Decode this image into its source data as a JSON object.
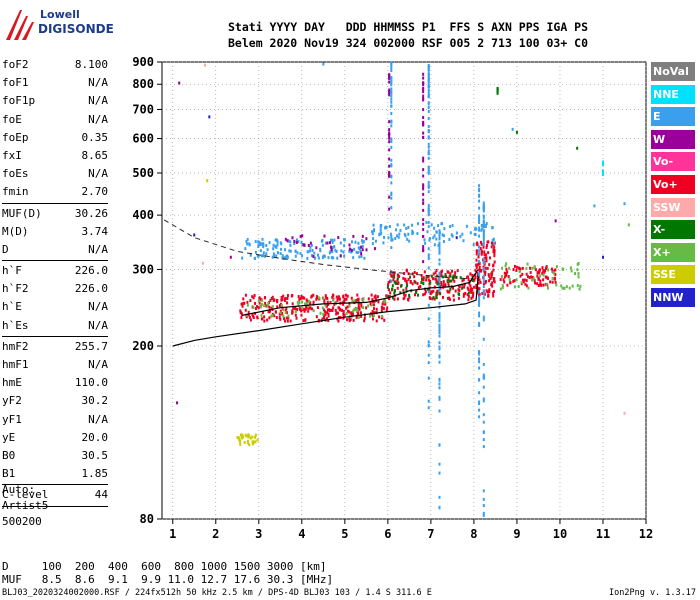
{
  "logo": {
    "line1": "Lowell",
    "line2": "DIGISONDE"
  },
  "header": {
    "line1": "Stati YYYY DAY   DDD HHMMSS P1  FFS S AXN PPS IGA PS",
    "line2": "Belem 2020 Nov19 324 002000 RSF 005 2 713 100 03+ C0"
  },
  "params": [
    {
      "k": "foF2",
      "v": "8.100"
    },
    {
      "k": "foF1",
      "v": "N/A"
    },
    {
      "k": "foF1p",
      "v": "N/A"
    },
    {
      "k": "foE",
      "v": "N/A"
    },
    {
      "k": "foEp",
      "v": "0.35"
    },
    {
      "k": "fxI",
      "v": "8.65"
    },
    {
      "k": "foEs",
      "v": "N/A"
    },
    {
      "k": "fmin",
      "v": "2.70"
    },
    {
      "sep": true
    },
    {
      "k": "MUF(D)",
      "v": "30.26"
    },
    {
      "k": "M(D)",
      "v": "3.74"
    },
    {
      "k": "D",
      "v": "N/A"
    },
    {
      "sep": true
    },
    {
      "k": "h`F",
      "v": "226.0"
    },
    {
      "k": "h`F2",
      "v": "226.0"
    },
    {
      "k": "h`E",
      "v": "N/A"
    },
    {
      "k": "h`Es",
      "v": "N/A"
    },
    {
      "sep": true
    },
    {
      "k": "hmF2",
      "v": "255.7"
    },
    {
      "k": "hmF1",
      "v": "N/A"
    },
    {
      "k": "hmE",
      "v": "110.0"
    },
    {
      "k": "yF2",
      "v": "30.2"
    },
    {
      "k": "yF1",
      "v": "N/A"
    },
    {
      "k": "yE",
      "v": "20.0"
    },
    {
      "k": "B0",
      "v": "30.5"
    },
    {
      "k": "B1",
      "v": "1.85"
    },
    {
      "sep": true
    },
    {
      "k": "C-level",
      "v": "44"
    },
    {
      "sep": true
    }
  ],
  "auto": [
    "Auto:",
    "Artist5",
    "500200"
  ],
  "legend": [
    {
      "label": "NoVal",
      "color": "#7f7f7f"
    },
    {
      "label": "NNE",
      "color": "#00e0ff"
    },
    {
      "label": "E",
      "color": "#3aa0ee"
    },
    {
      "label": "W",
      "color": "#9a0099"
    },
    {
      "label": "Vo-",
      "color": "#ff3399"
    },
    {
      "label": "Vo+",
      "color": "#ee0022"
    },
    {
      "label": "SSW",
      "color": "#ffaaaa"
    },
    {
      "label": "X-",
      "color": "#007700"
    },
    {
      "label": "X+",
      "color": "#66bb44"
    },
    {
      "label": "SSE",
      "color": "#cccc00"
    },
    {
      "label": "NNW",
      "color": "#2222cc"
    }
  ],
  "muf_table": {
    "d_row": "D     100  200  400  600  800 1000 1500 3000 [km]",
    "muf_row": "MUF   8.5  8.6  9.1  9.9 11.0 12.7 17.6 30.3 [MHz]"
  },
  "footer": "BLJ03_2020324002000.RSF / 224fx512h 50 kHz 2.5 km / DPS-4D BLJ03 103 / 1.4 S 311.6 E",
  "version": "Ion2Png v. 1.3.17",
  "chart_data": {
    "type": "scatter",
    "title": "",
    "xlabel": "",
    "ylabel": "",
    "xlim": [
      0.75,
      12
    ],
    "ylim": [
      80,
      900
    ],
    "x_ticks": [
      1,
      2,
      3,
      4,
      5,
      6,
      7,
      8,
      9,
      10,
      11,
      12
    ],
    "y_ticks": [
      80,
      200,
      300,
      400,
      500,
      600,
      700,
      800,
      900
    ],
    "profile_curve": {
      "name": "",
      "x": [
        1.0,
        1.5,
        2.0,
        3.0,
        4.0,
        5.0,
        6.0,
        7.0,
        7.8,
        8.05,
        8.1
      ],
      "y": [
        200,
        206,
        210,
        217,
        225,
        233,
        240,
        245,
        250,
        255,
        290
      ]
    },
    "dashed_curve": {
      "name": "",
      "x": [
        0.8,
        1.5,
        2.5,
        3.5,
        4.5,
        5.5,
        6.5,
        7.5,
        8.05
      ],
      "y": [
        390,
        355,
        330,
        318,
        308,
        300,
        293,
        287,
        285
      ]
    },
    "trace_curve": {
      "name": "",
      "x": [
        2.6,
        3.5,
        4.5,
        5.5,
        6.0,
        6.5,
        7.0,
        7.5,
        7.9,
        8.1
      ],
      "y": [
        235,
        245,
        250,
        252,
        258,
        268,
        272,
        274,
        280,
        300
      ]
    },
    "point_clusters": [
      {
        "series": "Vo+",
        "x_range": [
          2.55,
          6.0
        ],
        "y_range": [
          228,
          262
        ],
        "count": 320
      },
      {
        "series": "Vo+",
        "x_range": [
          6.0,
          8.1
        ],
        "y_range": [
          255,
          300
        ],
        "count": 200
      },
      {
        "series": "Vo+",
        "x_range": [
          8.05,
          8.5
        ],
        "y_range": [
          260,
          350
        ],
        "count": 120
      },
      {
        "series": "Vo+",
        "x_range": [
          8.6,
          9.9
        ],
        "y_range": [
          275,
          305
        ],
        "count": 90
      },
      {
        "series": "E",
        "x_range": [
          2.6,
          5.5
        ],
        "y_range": [
          318,
          352
        ],
        "count": 150
      },
      {
        "series": "E",
        "x_range": [
          5.6,
          8.5
        ],
        "y_range": [
          340,
          385
        ],
        "count": 100
      },
      {
        "series": "X+",
        "x_range": [
          2.7,
          6.0
        ],
        "y_range": [
          232,
          258
        ],
        "count": 60
      },
      {
        "series": "X-",
        "x_range": [
          6.0,
          8.0
        ],
        "y_range": [
          258,
          290
        ],
        "count": 50
      },
      {
        "series": "W",
        "x_range": [
          3.6,
          5.6
        ],
        "y_range": [
          320,
          360
        ],
        "count": 30
      },
      {
        "series": "X+",
        "x_range": [
          8.5,
          10.5
        ],
        "y_range": [
          270,
          310
        ],
        "count": 50
      },
      {
        "series": "SSE",
        "x_range": [
          2.5,
          3.0
        ],
        "y_range": [
          118,
          125
        ],
        "count": 30
      }
    ],
    "vertical_streaks": [
      {
        "series": "W",
        "x": 6.03,
        "y_range": [
          380,
          850
        ]
      },
      {
        "series": "E",
        "x": 6.08,
        "y_range": [
          280,
          900
        ]
      },
      {
        "series": "W",
        "x": 6.82,
        "y_range": [
          280,
          860
        ]
      },
      {
        "series": "E",
        "x": 6.95,
        "y_range": [
          120,
          900
        ]
      },
      {
        "series": "E",
        "x": 7.2,
        "y_range": [
          80,
          380
        ]
      },
      {
        "series": "E",
        "x": 8.12,
        "y_range": [
          130,
          470
        ]
      },
      {
        "series": "E",
        "x": 8.23,
        "y_range": [
          80,
          430
        ]
      },
      {
        "series": "X-",
        "x": 8.55,
        "y_range": [
          760,
          790
        ]
      },
      {
        "series": "NNE",
        "x": 11.0,
        "y_range": [
          490,
          530
        ]
      }
    ],
    "scattered_points": [
      {
        "series": "W",
        "x": 1.15,
        "y": 805
      },
      {
        "series": "NNW",
        "x": 1.85,
        "y": 673
      },
      {
        "series": "SSW",
        "x": 1.75,
        "y": 885
      },
      {
        "series": "E",
        "x": 4.5,
        "y": 890
      },
      {
        "series": "X-",
        "x": 10.4,
        "y": 570
      },
      {
        "series": "E",
        "x": 10.8,
        "y": 420
      },
      {
        "series": "NNW",
        "x": 11.0,
        "y": 320
      },
      {
        "series": "E",
        "x": 11.5,
        "y": 425
      },
      {
        "series": "X+",
        "x": 11.6,
        "y": 380
      },
      {
        "series": "SSW",
        "x": 11.5,
        "y": 140
      },
      {
        "series": "W",
        "x": 1.1,
        "y": 148
      },
      {
        "series": "NNW",
        "x": 1.5,
        "y": 360
      },
      {
        "series": "SSW",
        "x": 1.7,
        "y": 310
      },
      {
        "series": "SSE",
        "x": 1.8,
        "y": 480
      },
      {
        "series": "W",
        "x": 2.35,
        "y": 320
      },
      {
        "series": "X-",
        "x": 9.0,
        "y": 620
      },
      {
        "series": "E",
        "x": 8.9,
        "y": 630
      },
      {
        "series": "W",
        "x": 5.7,
        "y": 335
      },
      {
        "series": "NNW",
        "x": 7.6,
        "y": 355
      },
      {
        "series": "W",
        "x": 9.9,
        "y": 388
      }
    ]
  }
}
